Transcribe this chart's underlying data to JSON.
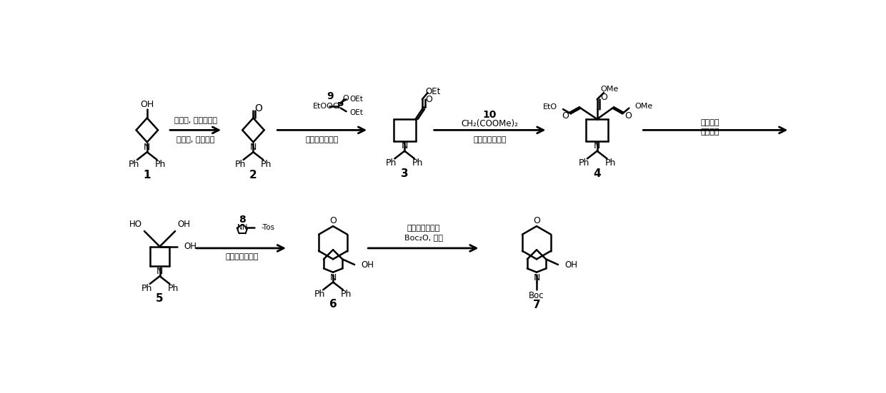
{
  "background": "#ffffff",
  "step1_above": "草酰氯, 二甲基亚砜",
  "step1_below": "三乙胺, 二氯甲烷",
  "step2_reagent": "9",
  "step2_above": "钠氢，四氢呋喃",
  "step3_reagent": "10",
  "step3_above": "CH₂(COOMe)₂",
  "step3_below": "钠氢，四氢呋喃",
  "step4_above": "四氢铝锂",
  "step4_below": "四氢呋喃",
  "step5_reagent": "8",
  "step5_above": "钠氢，四氢呋喃",
  "step6_above": "氢气，氢氧化钯",
  "step6_below": "Boc₂O, 甲醇",
  "compound_labels": [
    "1",
    "2",
    "3",
    "4",
    "5",
    "6",
    "7"
  ]
}
